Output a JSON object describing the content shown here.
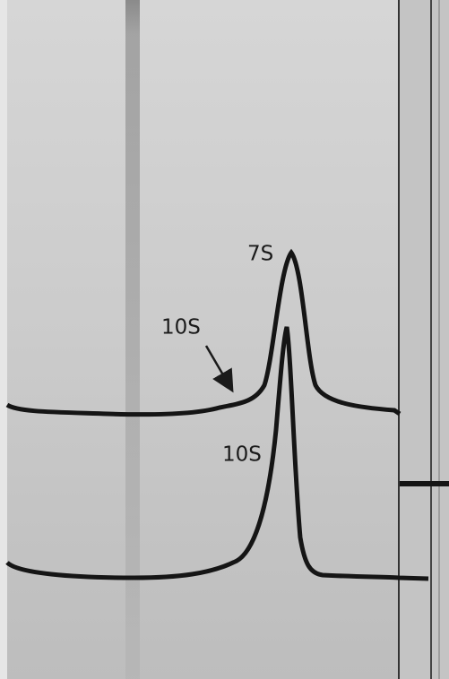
{
  "annotations": {
    "upper_peak": "7S",
    "upper_shoulder": "10S",
    "lower_peak": "10S"
  }
}
